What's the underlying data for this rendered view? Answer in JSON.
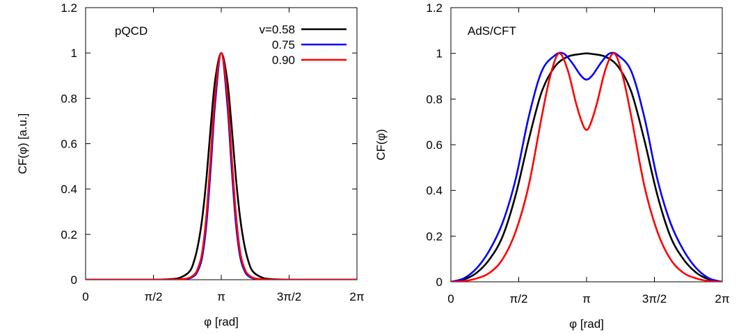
{
  "chart_data": [
    {
      "type": "line",
      "annotation": "pQCD",
      "xlabel": "φ [rad]",
      "ylabel": "CF(φ) [a.u.]",
      "xlim": [
        0,
        6.2832
      ],
      "ylim": [
        0,
        1.2
      ],
      "xticks": [
        {
          "value": 0,
          "label": "0"
        },
        {
          "value": 1.5708,
          "label": "π/2"
        },
        {
          "value": 3.1416,
          "label": "π"
        },
        {
          "value": 4.7124,
          "label": "3π/2"
        },
        {
          "value": 6.2832,
          "label": "2π"
        }
      ],
      "yticks": [
        {
          "value": 0,
          "label": "0"
        },
        {
          "value": 0.2,
          "label": "0.2"
        },
        {
          "value": 0.4,
          "label": "0.4"
        },
        {
          "value": 0.6,
          "label": "0.6"
        },
        {
          "value": 0.8,
          "label": "0.8"
        },
        {
          "value": 1.0,
          "label": "1"
        },
        {
          "value": 1.2,
          "label": "1.2"
        }
      ],
      "legend": {
        "placement": "top-right",
        "entries": [
          "v=0.58",
          "0.75",
          "0.90"
        ]
      },
      "series": [
        {
          "name": "v=0.58",
          "color": "#000000",
          "x": [
            0,
            1.5,
            2.0,
            2.2,
            2.4,
            2.5,
            2.6,
            2.7,
            2.8,
            2.9,
            3.0,
            3.1416,
            3.28,
            3.38,
            3.48,
            3.58,
            3.68,
            3.78,
            3.88,
            4.08,
            4.28,
            4.8,
            6.2832
          ],
          "values": [
            0,
            0,
            0.003,
            0.01,
            0.035,
            0.075,
            0.15,
            0.27,
            0.45,
            0.68,
            0.88,
            1.0,
            0.88,
            0.68,
            0.45,
            0.27,
            0.15,
            0.075,
            0.035,
            0.01,
            0.003,
            0,
            0
          ]
        },
        {
          "name": "0.75",
          "color": "#0000ff",
          "x": [
            0,
            1.8,
            2.3,
            2.5,
            2.6,
            2.7,
            2.8,
            2.9,
            3.0,
            3.1416,
            3.28,
            3.38,
            3.48,
            3.58,
            3.68,
            3.78,
            3.98,
            4.5,
            6.2832
          ],
          "values": [
            0,
            0,
            0.003,
            0.015,
            0.04,
            0.1,
            0.25,
            0.5,
            0.78,
            1.0,
            0.78,
            0.5,
            0.25,
            0.1,
            0.04,
            0.015,
            0.003,
            0,
            0
          ]
        },
        {
          "name": "0.90",
          "color": "#ff0000",
          "x": [
            0,
            1.8,
            2.3,
            2.5,
            2.6,
            2.7,
            2.8,
            2.9,
            3.0,
            3.1416,
            3.28,
            3.38,
            3.48,
            3.58,
            3.68,
            3.78,
            3.98,
            4.5,
            6.2832
          ],
          "values": [
            0,
            0,
            0.004,
            0.02,
            0.05,
            0.12,
            0.29,
            0.55,
            0.82,
            1.0,
            0.82,
            0.55,
            0.29,
            0.12,
            0.05,
            0.02,
            0.004,
            0,
            0
          ]
        }
      ]
    },
    {
      "type": "line",
      "annotation": "AdS/CFT",
      "xlabel": "φ [rad]",
      "ylabel": "CF(φ)",
      "xlim": [
        0,
        6.2832
      ],
      "ylim": [
        0,
        1.2
      ],
      "xticks": [
        {
          "value": 0,
          "label": "0"
        },
        {
          "value": 1.5708,
          "label": "π/2"
        },
        {
          "value": 3.1416,
          "label": "π"
        },
        {
          "value": 4.7124,
          "label": "3π/2"
        },
        {
          "value": 6.2832,
          "label": "2π"
        }
      ],
      "yticks": [
        {
          "value": 0,
          "label": "0"
        },
        {
          "value": 0.2,
          "label": "0.2"
        },
        {
          "value": 0.4,
          "label": "0.4"
        },
        {
          "value": 0.6,
          "label": "0.6"
        },
        {
          "value": 0.8,
          "label": "0.8"
        },
        {
          "value": 1.0,
          "label": "1"
        },
        {
          "value": 1.2,
          "label": "1.2"
        }
      ],
      "series": [
        {
          "name": "v=0.58",
          "color": "#000000",
          "x": [
            0,
            0.3,
            0.6,
            0.9,
            1.2,
            1.5,
            1.8,
            2.1,
            2.4,
            2.7,
            3.0,
            3.1416,
            3.28,
            3.58,
            3.88,
            4.18,
            4.48,
            4.78,
            5.08,
            5.38,
            5.68,
            5.98,
            6.2832
          ],
          "values": [
            0,
            0.01,
            0.04,
            0.1,
            0.2,
            0.38,
            0.62,
            0.83,
            0.94,
            0.985,
            0.997,
            1.0,
            0.997,
            0.985,
            0.94,
            0.83,
            0.62,
            0.38,
            0.2,
            0.1,
            0.04,
            0.01,
            0
          ]
        },
        {
          "name": "0.75",
          "color": "#0000ff",
          "x": [
            0,
            0.3,
            0.6,
            0.9,
            1.2,
            1.5,
            1.8,
            2.1,
            2.4,
            2.6,
            2.8,
            3.0,
            3.1416,
            3.28,
            3.48,
            3.68,
            3.88,
            4.18,
            4.48,
            4.78,
            5.08,
            5.38,
            5.68,
            5.98,
            6.2832
          ],
          "values": [
            0,
            0.015,
            0.06,
            0.14,
            0.26,
            0.45,
            0.72,
            0.92,
            0.99,
            1.0,
            0.96,
            0.905,
            0.885,
            0.905,
            0.96,
            1.0,
            0.99,
            0.92,
            0.72,
            0.45,
            0.26,
            0.14,
            0.06,
            0.015,
            0
          ]
        },
        {
          "name": "0.90",
          "color": "#ff0000",
          "x": [
            0,
            0.3,
            0.6,
            0.9,
            1.2,
            1.5,
            1.8,
            2.1,
            2.3,
            2.5,
            2.7,
            2.9,
            3.05,
            3.1416,
            3.23,
            3.38,
            3.58,
            3.78,
            3.98,
            4.18,
            4.48,
            4.78,
            5.08,
            5.38,
            5.68,
            5.98,
            6.2832
          ],
          "values": [
            0,
            0.003,
            0.015,
            0.04,
            0.1,
            0.22,
            0.42,
            0.72,
            0.9,
            1.0,
            0.93,
            0.78,
            0.69,
            0.665,
            0.69,
            0.78,
            0.93,
            1.0,
            0.9,
            0.72,
            0.42,
            0.22,
            0.1,
            0.04,
            0.015,
            0.003,
            0
          ]
        }
      ]
    }
  ]
}
